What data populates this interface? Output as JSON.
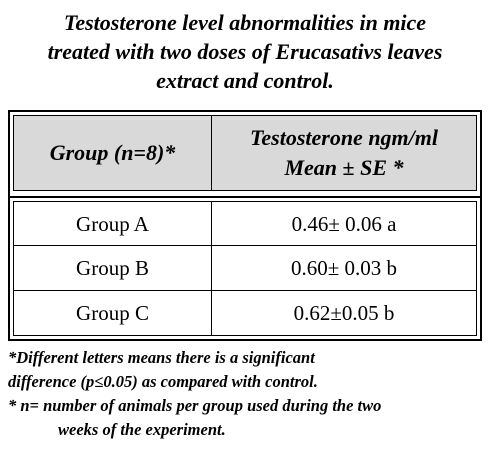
{
  "title": {
    "line1": "Testosterone level abnormalities in mice",
    "line2": "treated with two doses of Erucasativs leaves",
    "line3": "extract and control."
  },
  "table": {
    "headers": {
      "group": "Group (n=8)*",
      "value_line1": "Testosterone ngm/ml",
      "value_line2": "Mean ± SE *"
    },
    "rows": [
      {
        "group": "Group A",
        "value": "0.46± 0.06 a"
      },
      {
        "group": "Group B",
        "value": "0.60± 0.03 b"
      },
      {
        "group": "Group C",
        "value": "0.62±0.05 b"
      }
    ],
    "header_fill": "#d9d9d9"
  },
  "notes": {
    "note1_line1": "*Different letters means there is a significant",
    "note1_line2": "difference (p≤0.05) as compared with control.",
    "note2_line1": "* n= number of animals per group used during the two",
    "note2_line2": "weeks of the experiment."
  }
}
